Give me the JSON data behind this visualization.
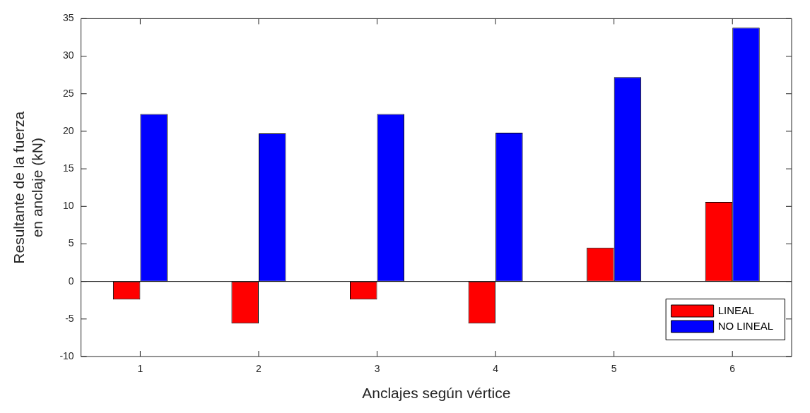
{
  "chart_data": {
    "type": "bar",
    "xlabel": "Anclajes según vértice",
    "ylabel": "Resultante de la fuerza\nen anclaje (kN)",
    "categories": [
      "1",
      "2",
      "3",
      "4",
      "5",
      "6"
    ],
    "series": [
      {
        "name": "LINEAL",
        "color": "#ff0000",
        "values": [
          -2.4,
          -5.6,
          -2.4,
          -5.6,
          4.5,
          10.6
        ]
      },
      {
        "name": "NO LINEAL",
        "color": "#0000ff",
        "values": [
          22.3,
          19.7,
          22.3,
          19.8,
          27.2,
          33.8
        ]
      }
    ],
    "ylim": [
      -10,
      35
    ],
    "yticks": [
      -10,
      -5,
      0,
      5,
      10,
      15,
      20,
      25,
      30,
      35
    ],
    "ref_lines": [
      {
        "axis": "y",
        "value": 0,
        "color": "#000000"
      }
    ],
    "legend": "bottom right",
    "grid": false
  }
}
